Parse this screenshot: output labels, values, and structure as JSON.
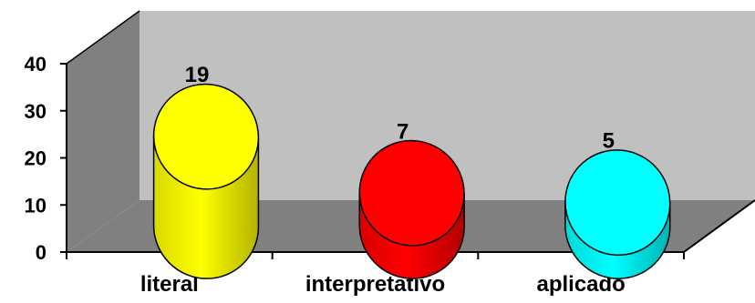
{
  "chart_data": {
    "type": "bar",
    "style": "3d-cylinder",
    "categories": [
      "literal",
      "interpretativo",
      "aplicado"
    ],
    "values": [
      19,
      7,
      5
    ],
    "data_labels": [
      "19",
      "7",
      "5"
    ],
    "ylim": [
      0,
      40
    ],
    "yticks": [
      "0",
      "10",
      "20",
      "30",
      "40"
    ],
    "colors": [
      "#ffff00",
      "#ff0000",
      "#00ffff"
    ],
    "wall_color": "#c0c0c0",
    "side_wall_color": "#808080",
    "floor_color": "#808080",
    "grid": false,
    "legend": "none"
  }
}
